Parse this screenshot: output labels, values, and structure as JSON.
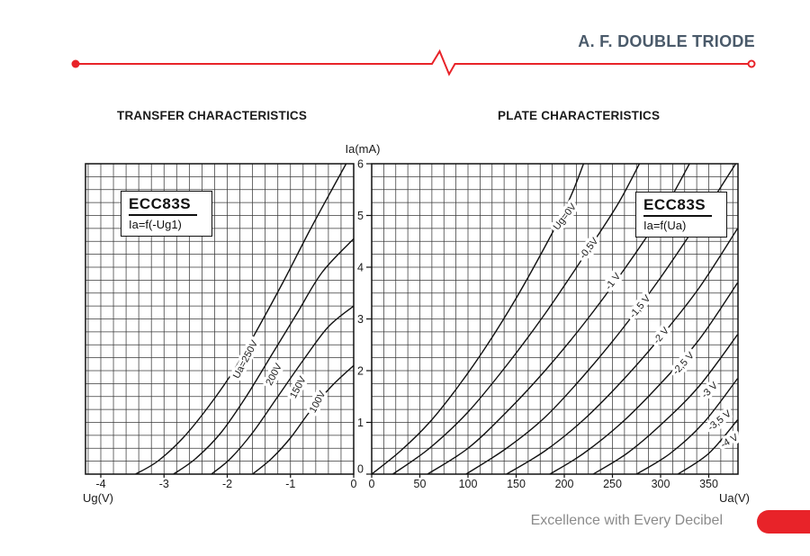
{
  "header": {
    "title": "A. F. DOUBLE TRIODE",
    "accent_color": "#e82329",
    "title_color": "#4a5a6a"
  },
  "sections": {
    "left_title": "TRANSFER CHARACTERISTICS",
    "right_title": "PLATE CHARACTERISTICS"
  },
  "footer": {
    "tagline": "Excellence with Every Decibel"
  },
  "chart_data": [
    {
      "type": "line",
      "title": "TRANSFER CHARACTERISTICS",
      "box_label": {
        "model": "ECC83S",
        "function": "Ia=f(-Ug1)"
      },
      "xlabel": "Ug(V)",
      "ylabel": "Ia(mA)",
      "xlim": [
        -4.25,
        0
      ],
      "ylim": [
        0,
        6
      ],
      "x_ticks": [
        -4,
        -3,
        -2,
        -1,
        0
      ],
      "y_ticks": [
        0,
        1,
        2,
        3,
        4,
        5,
        6
      ],
      "grid": true,
      "legend_position": "none",
      "series": [
        {
          "name": "Ua=250V",
          "points": [
            [
              -3.45,
              0
            ],
            [
              -3.1,
              0.25
            ],
            [
              -2.7,
              0.7
            ],
            [
              -2.3,
              1.3
            ],
            [
              -1.9,
              2.0
            ],
            [
              -1.5,
              2.85
            ],
            [
              -1.1,
              3.75
            ],
            [
              -0.7,
              4.7
            ],
            [
              -0.3,
              5.6
            ],
            [
              -0.12,
              6.0
            ]
          ]
        },
        {
          "name": "200V",
          "points": [
            [
              -2.85,
              0
            ],
            [
              -2.5,
              0.3
            ],
            [
              -2.1,
              0.8
            ],
            [
              -1.7,
              1.5
            ],
            [
              -1.3,
              2.3
            ],
            [
              -0.9,
              3.1
            ],
            [
              -0.5,
              3.9
            ],
            [
              0,
              4.55
            ]
          ]
        },
        {
          "name": "150V",
          "points": [
            [
              -2.25,
              0
            ],
            [
              -1.95,
              0.3
            ],
            [
              -1.6,
              0.8
            ],
            [
              -1.2,
              1.5
            ],
            [
              -0.8,
              2.2
            ],
            [
              -0.4,
              2.85
            ],
            [
              0,
              3.25
            ]
          ]
        },
        {
          "name": "100V",
          "points": [
            [
              -1.6,
              0
            ],
            [
              -1.3,
              0.3
            ],
            [
              -1.0,
              0.7
            ],
            [
              -0.7,
              1.2
            ],
            [
              -0.35,
              1.7
            ],
            [
              0,
              2.1
            ]
          ]
        }
      ],
      "curve_labels": [
        {
          "text": "Ua=250V",
          "x": -1.67,
          "y": 2.19,
          "rotation": -62
        },
        {
          "text": "200V",
          "x": -1.22,
          "y": 1.9,
          "rotation": -62
        },
        {
          "text": "150V",
          "x": -0.84,
          "y": 1.65,
          "rotation": -62
        },
        {
          "text": "100V",
          "x": -0.53,
          "y": 1.37,
          "rotation": -62
        }
      ]
    },
    {
      "type": "line",
      "title": "PLATE CHARACTERISTICS",
      "box_label": {
        "model": "ECC83S",
        "function": "Ia=f(Ua)"
      },
      "xlabel": "Ua(V)",
      "ylabel": "Ia(mA)",
      "xlim": [
        0,
        380
      ],
      "ylim": [
        0,
        6
      ],
      "x_ticks": [
        0,
        50,
        100,
        150,
        200,
        250,
        300,
        350
      ],
      "y_ticks": [
        0,
        1,
        2,
        3,
        4,
        5,
        6
      ],
      "grid": true,
      "legend_position": "none",
      "series": [
        {
          "name": "Ug=0V",
          "points": [
            [
              0,
              0
            ],
            [
              30,
              0.45
            ],
            [
              60,
              1.0
            ],
            [
              90,
              1.7
            ],
            [
              120,
              2.5
            ],
            [
              150,
              3.4
            ],
            [
              180,
              4.4
            ],
            [
              205,
              5.3
            ],
            [
              220,
              6.0
            ]
          ]
        },
        {
          "name": "-0,5V",
          "points": [
            [
              22,
              0
            ],
            [
              60,
              0.5
            ],
            [
              100,
              1.2
            ],
            [
              140,
              2.1
            ],
            [
              180,
              3.1
            ],
            [
              220,
              4.2
            ],
            [
              255,
              5.2
            ],
            [
              278,
              6.0
            ]
          ]
        },
        {
          "name": "-1 V",
          "points": [
            [
              58,
              0
            ],
            [
              100,
              0.5
            ],
            [
              140,
              1.2
            ],
            [
              180,
              2.0
            ],
            [
              220,
              2.9
            ],
            [
              260,
              3.9
            ],
            [
              300,
              5.0
            ],
            [
              330,
              6.0
            ]
          ]
        },
        {
          "name": "-1,5 V",
          "points": [
            [
              98,
              0
            ],
            [
              140,
              0.5
            ],
            [
              180,
              1.1
            ],
            [
              220,
              1.9
            ],
            [
              260,
              2.8
            ],
            [
              300,
              3.8
            ],
            [
              340,
              4.9
            ],
            [
              378,
              6.0
            ]
          ]
        },
        {
          "name": "-2 V",
          "points": [
            [
              140,
              0
            ],
            [
              180,
              0.45
            ],
            [
              220,
              1.05
            ],
            [
              260,
              1.8
            ],
            [
              300,
              2.65
            ],
            [
              340,
              3.6
            ],
            [
              380,
              4.75
            ]
          ]
        },
        {
          "name": "-2,5 V",
          "points": [
            [
              185,
              0
            ],
            [
              220,
              0.4
            ],
            [
              260,
              1.0
            ],
            [
              300,
              1.75
            ],
            [
              340,
              2.6
            ],
            [
              380,
              3.7
            ]
          ]
        },
        {
          "name": "-3 V",
          "points": [
            [
              230,
              0
            ],
            [
              265,
              0.4
            ],
            [
              300,
              0.95
            ],
            [
              340,
              1.7
            ],
            [
              380,
              2.7
            ]
          ]
        },
        {
          "name": "-3,5 V",
          "points": [
            [
              275,
              0
            ],
            [
              310,
              0.4
            ],
            [
              345,
              1.0
            ],
            [
              380,
              1.85
            ]
          ]
        },
        {
          "name": "-4 V",
          "points": [
            [
              318,
              0
            ],
            [
              350,
              0.4
            ],
            [
              380,
              1.05
            ]
          ]
        }
      ],
      "curve_labels": [
        {
          "text": "Ug=0V",
          "x": 203,
          "y": 4.94,
          "rotation": -52
        },
        {
          "text": "-0,5V",
          "x": 228,
          "y": 4.33,
          "rotation": -52
        },
        {
          "text": "-1 V",
          "x": 253,
          "y": 3.69,
          "rotation": -52
        },
        {
          "text": "-1,5 V",
          "x": 281,
          "y": 3.2,
          "rotation": -50
        },
        {
          "text": "-2 V",
          "x": 303,
          "y": 2.64,
          "rotation": -50
        },
        {
          "text": "-2,5 V",
          "x": 326,
          "y": 2.1,
          "rotation": -48
        },
        {
          "text": "-3 V",
          "x": 353,
          "y": 1.58,
          "rotation": -44
        },
        {
          "text": "-3,5 V",
          "x": 363,
          "y": 0.99,
          "rotation": -38
        },
        {
          "text": "-4 V",
          "x": 373,
          "y": 0.59,
          "rotation": -30
        }
      ]
    }
  ]
}
